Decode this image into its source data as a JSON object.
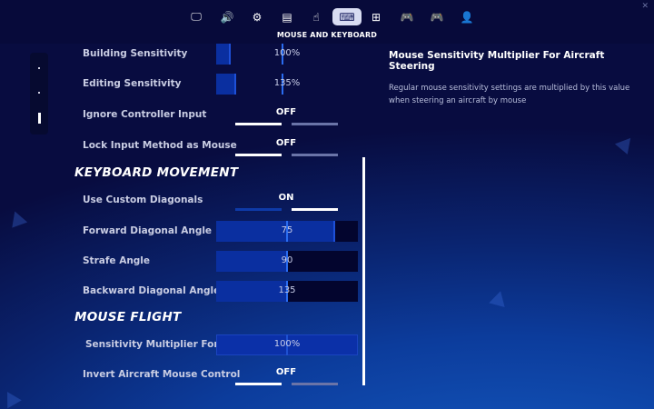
{
  "nav": {
    "tabs": [
      {
        "icon": "monitor-icon",
        "glyph": "🖵"
      },
      {
        "icon": "speaker-icon",
        "glyph": "🔊"
      },
      {
        "icon": "gear-icon",
        "glyph": "⚙"
      },
      {
        "icon": "game-ui-icon",
        "glyph": "▤"
      },
      {
        "icon": "touch-icon",
        "glyph": "☝"
      },
      {
        "icon": "keyboard-mouse-icon",
        "glyph": "⌨"
      },
      {
        "icon": "network-icon",
        "glyph": "⊞"
      },
      {
        "icon": "controller-wireless-icon",
        "glyph": "🎮"
      },
      {
        "icon": "controller-icon",
        "glyph": "🎮"
      },
      {
        "icon": "account-icon",
        "glyph": "👤"
      }
    ],
    "active": 5,
    "title": "MOUSE AND KEYBOARD"
  },
  "settings": {
    "building": {
      "label": "Building Sensitivity",
      "value": "100%",
      "fill": 0.1
    },
    "editing": {
      "label": "Editing Sensitivity",
      "value": "135%",
      "fill": 0.14
    },
    "ignore_controller": {
      "label": "Ignore Controller Input",
      "value": "OFF"
    },
    "lock_input": {
      "label": "Lock Input Method as Mouse",
      "value": "OFF"
    },
    "keyboard_movement": "KEYBOARD MOVEMENT",
    "custom_diagonals": {
      "label": "Use Custom Diagonals",
      "value": "ON"
    },
    "forward_angle": {
      "label": "Forward Diagonal Angle",
      "value": "75",
      "fill": 0.84
    },
    "strafe_angle": {
      "label": "Strafe Angle",
      "value": "90",
      "fill": 0.5
    },
    "backward_angle": {
      "label": "Backward Diagonal Angle",
      "value": "135",
      "fill": 0.5
    },
    "mouse_flight": "MOUSE FLIGHT",
    "sens_multiplier": {
      "label": "Sensitivity Multiplier For Airc",
      "value": "100%",
      "fill": 1.0
    },
    "invert_aircraft": {
      "label": "Invert Aircraft Mouse Control",
      "value": "OFF"
    }
  },
  "description": {
    "title": "Mouse Sensitivity Multiplier For Aircraft Steering",
    "body": "Regular mouse sensitivity settings are multiplied by this value when steering an aircraft by mouse"
  },
  "colors": {
    "accent": "#0a2fa0",
    "marker": "#2a6cf0",
    "toggle_on": "#ffffff",
    "toggle_off": "#6a74a8"
  }
}
